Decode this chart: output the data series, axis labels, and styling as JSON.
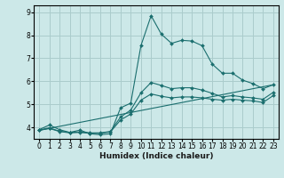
{
  "title": "",
  "xlabel": "Humidex (Indice chaleur)",
  "ylabel": "",
  "xlim": [
    -0.5,
    23.5
  ],
  "ylim": [
    3.5,
    9.3
  ],
  "background_color": "#cce8e8",
  "grid_color": "#aacccc",
  "line_color": "#1a6e6e",
  "xticks": [
    0,
    1,
    2,
    3,
    4,
    5,
    6,
    7,
    8,
    9,
    10,
    11,
    12,
    13,
    14,
    15,
    16,
    17,
    18,
    19,
    20,
    21,
    22,
    23
  ],
  "yticks": [
    4,
    5,
    6,
    7,
    8,
    9
  ],
  "lines": [
    {
      "x": [
        0,
        1,
        2,
        3,
        4,
        5,
        6,
        7,
        8,
        9,
        10,
        11,
        12,
        13,
        14,
        15,
        16,
        17,
        18,
        19,
        20,
        21,
        22,
        23
      ],
      "y": [
        3.9,
        4.1,
        3.9,
        3.78,
        3.88,
        3.72,
        3.68,
        3.72,
        4.85,
        5.05,
        7.55,
        8.85,
        8.05,
        7.65,
        7.78,
        7.75,
        7.55,
        6.75,
        6.35,
        6.35,
        6.05,
        5.9,
        5.68,
        5.85
      ]
    },
    {
      "x": [
        0,
        1,
        2,
        3,
        4,
        5,
        6,
        7,
        8,
        9,
        10,
        11,
        12,
        13,
        14,
        15,
        16,
        17,
        18,
        19,
        20,
        21,
        22,
        23
      ],
      "y": [
        3.88,
        3.98,
        3.83,
        3.78,
        3.8,
        3.76,
        3.76,
        3.82,
        4.45,
        4.75,
        5.5,
        5.95,
        5.82,
        5.68,
        5.72,
        5.72,
        5.62,
        5.48,
        5.32,
        5.38,
        5.32,
        5.28,
        5.22,
        5.52
      ]
    },
    {
      "x": [
        0,
        1,
        2,
        3,
        4,
        5,
        6,
        7,
        8,
        9,
        10,
        11,
        12,
        13,
        14,
        15,
        16,
        17,
        18,
        19,
        20,
        21,
        22,
        23
      ],
      "y": [
        3.87,
        3.95,
        3.82,
        3.76,
        3.78,
        3.74,
        3.74,
        3.8,
        4.32,
        4.58,
        5.18,
        5.45,
        5.35,
        5.28,
        5.32,
        5.32,
        5.28,
        5.22,
        5.18,
        5.22,
        5.18,
        5.15,
        5.08,
        5.38
      ]
    },
    {
      "x": [
        0,
        23
      ],
      "y": [
        3.87,
        5.85
      ]
    }
  ]
}
